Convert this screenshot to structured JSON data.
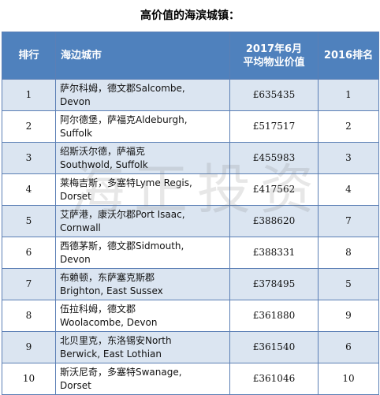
{
  "title": "高价值的海滨城镇：",
  "headers": {
    "rank": "排行",
    "city": "海边城市",
    "price": "2017年6月平均物业价值",
    "rank2016": "2016排名"
  },
  "rows": [
    {
      "rank": "1",
      "city": "萨尔科姆，德文郡Salcombe,\nDevon",
      "price": "£635435",
      "rank2016": "1"
    },
    {
      "rank": "2",
      "city": "阿尔德堡，萨福克Aldeburgh,\nSuffolk",
      "price": "£517517",
      "rank2016": "2"
    },
    {
      "rank": "3",
      "city": "绍斯沃尔德，萨福克\nSouthwold, Suffolk",
      "price": "£455983",
      "rank2016": "3"
    },
    {
      "rank": "4",
      "city": "莱梅吉斯，多塞特Lyme Regis,\nDorset",
      "price": "£417562",
      "rank2016": "4"
    },
    {
      "rank": "5",
      "city": "艾萨港，康沃尔郡Port Isaac,\nCornwall",
      "price": "£388620",
      "rank2016": "7"
    },
    {
      "rank": "6",
      "city": "西德茅斯，德文郡Sidmouth,\nDevon",
      "price": "£388331",
      "rank2016": "8"
    },
    {
      "rank": "7",
      "city": "布赖顿，东萨塞克斯郡\nBrighton, East Sussex",
      "price": "£378495",
      "rank2016": "5"
    },
    {
      "rank": "8",
      "city": "伍拉科姆，德文郡\nWoolacombe, Devon",
      "price": "£361880",
      "rank2016": "9"
    },
    {
      "rank": "9",
      "city": "北贝里克，东洛锡安North\nBerwick, East Lothian",
      "price": "£361540",
      "rank2016": "6"
    },
    {
      "rank": "10",
      "city": "斯沃尼奇，多塞特Swanage,\nDorset",
      "price": "£361046",
      "rank2016": "10"
    }
  ],
  "watermark": "海正投资",
  "colors": {
    "header_bg": "#4f81bd",
    "row_alt_bg": "#dbe5f1",
    "border": "#5b7fb5"
  }
}
